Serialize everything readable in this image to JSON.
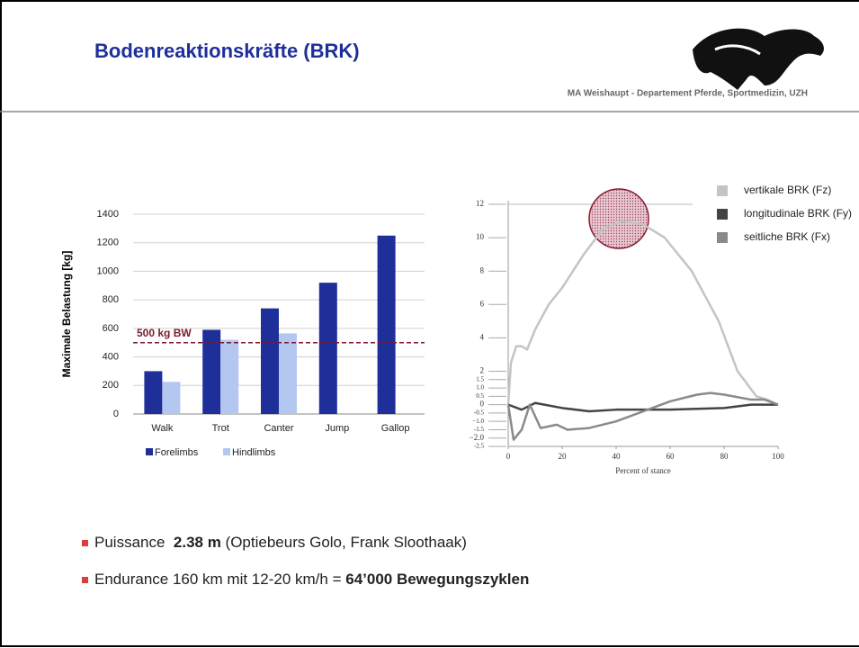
{
  "header": {
    "title": "Bodenreaktionskräfte (BRK)",
    "subtitle": "MA Weishaupt - Departement Pferde, Sportmedizin, UZH"
  },
  "bullets": [
    [
      "Puissance  ",
      "2.38 m",
      " (Optiebeurs Golo, Frank Sloothaak)"
    ],
    [
      "Endurance 160 km mit 12-20 km/h = ",
      "64’000 Bewegungszyklen"
    ]
  ],
  "chart_data": [
    {
      "type": "bar",
      "ylabel": "Maximale Belastung  [kg]",
      "categories": [
        "Walk",
        "Trot",
        "Canter",
        "Jump",
        "Gallop"
      ],
      "series": [
        {
          "name": "Forelimbs",
          "color": "#1f2f9a",
          "values": [
            300,
            590,
            740,
            920,
            1250
          ]
        },
        {
          "name": "Hindlimbs",
          "color": "#b4c7f0",
          "values": [
            225,
            520,
            565,
            null,
            null
          ]
        }
      ],
      "ylim": [
        0,
        1400
      ],
      "yticks": [
        0,
        200,
        400,
        600,
        800,
        1000,
        1200,
        1400
      ],
      "grid": true,
      "legend": "bottom",
      "reference": {
        "value": 500,
        "label": "500 kg BW",
        "color": "#7b1a2e"
      }
    },
    {
      "type": "line",
      "xlabel": "Percent of stance",
      "xlim": [
        0,
        100
      ],
      "xticks": [
        0,
        20,
        40,
        60,
        80,
        100
      ],
      "ylim": [
        -2.5,
        12
      ],
      "yticks": [
        12,
        10,
        8,
        6,
        4,
        2,
        1.5,
        {
          "value": 1,
          "label": "1.0"
        },
        0.5,
        0,
        -0.5,
        {
          "value": -1,
          "label": "−1.0"
        },
        -1.5,
        {
          "value": -2,
          "label": "−2.0"
        },
        -2.5
      ],
      "legend": "upper right",
      "series": [
        {
          "name": "vertikale BRK (Fz)",
          "color": "#c4c4c4",
          "x": [
            0,
            1,
            3,
            5,
            7,
            10,
            15,
            20,
            28,
            35,
            42,
            50,
            58,
            68,
            78,
            85,
            92,
            96,
            100
          ],
          "values": [
            0,
            2.5,
            3.5,
            3.5,
            3.3,
            4.5,
            6,
            7,
            9,
            10.5,
            11,
            10.8,
            10,
            8,
            5,
            2,
            0.5,
            0.3,
            0
          ]
        },
        {
          "name": "longitudinale BRK (Fy)",
          "color": "#444444",
          "x": [
            0,
            5,
            10,
            20,
            30,
            40,
            60,
            80,
            90,
            100
          ],
          "values": [
            0,
            -0.3,
            0.1,
            -0.2,
            -0.4,
            -0.3,
            -0.3,
            -0.2,
            0,
            0
          ]
        },
        {
          "name": "seitliche BRK (Fx)",
          "color": "#8a8a8a",
          "x": [
            0,
            2,
            5,
            8,
            12,
            18,
            22,
            30,
            40,
            50,
            60,
            70,
            75,
            80,
            90,
            95,
            100
          ],
          "values": [
            0,
            -2.1,
            -1.5,
            0,
            -1.4,
            -1.2,
            -1.5,
            -1.4,
            -1,
            -0.4,
            0.2,
            0.6,
            0.7,
            0.6,
            0.3,
            0.3,
            0
          ]
        }
      ]
    }
  ]
}
